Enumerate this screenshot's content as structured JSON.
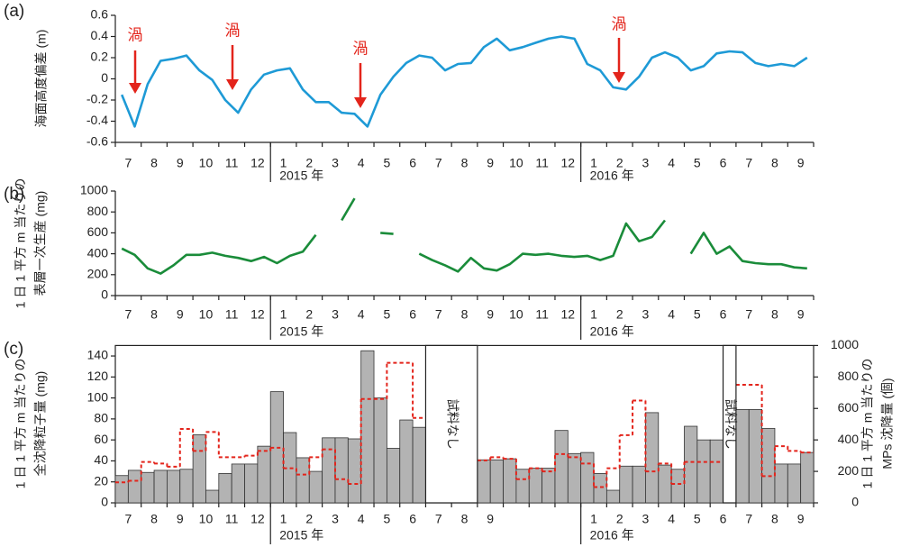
{
  "chart_data": [
    {
      "type": "line",
      "panel_label": "(a)",
      "y_label": "海面高度偏差 (m)",
      "categories": [
        "7",
        null,
        "8",
        null,
        "9",
        null,
        "10",
        null,
        "11",
        null,
        "12",
        null,
        "1",
        null,
        "2",
        null,
        "3",
        null,
        "4",
        null,
        "5",
        null,
        "6",
        null,
        "7",
        null,
        "8",
        null,
        "9",
        null,
        "10",
        null,
        "11",
        null,
        "12",
        null,
        "1",
        null,
        "2",
        null,
        "3",
        null,
        "4",
        null,
        "5",
        null,
        "6",
        null,
        "7",
        null,
        "8",
        null,
        "9",
        null
      ],
      "year_labels": [
        "2015 年",
        "2016 年"
      ],
      "annotations": [
        "渦",
        "渦",
        "渦",
        "渦"
      ],
      "annotation_color": "#e3241b",
      "series": [
        {
          "color": "#1e9ad6",
          "values": [
            -0.15,
            -0.45,
            -0.05,
            0.17,
            0.19,
            0.22,
            0.08,
            -0.01,
            -0.2,
            -0.32,
            -0.1,
            0.04,
            0.08,
            0.1,
            -0.1,
            -0.22,
            -0.22,
            -0.32,
            -0.33,
            -0.45,
            -0.15,
            0.02,
            0.15,
            0.22,
            0.2,
            0.08,
            0.14,
            0.15,
            0.3,
            0.38,
            0.27,
            0.3,
            0.34,
            0.38,
            0.4,
            0.38,
            0.14,
            0.08,
            -0.08,
            -0.1,
            0.02,
            0.2,
            0.25,
            0.2,
            0.08,
            0.12,
            0.24,
            0.26,
            0.25,
            0.15,
            0.12,
            0.14,
            0.12,
            0.2
          ]
        }
      ],
      "ylim": [
        -0.6,
        0.6
      ],
      "yticks": [
        -0.6,
        -0.4,
        -0.2,
        0,
        0.2,
        0.4,
        0.6
      ]
    },
    {
      "type": "line",
      "panel_label": "(b)",
      "y_label": [
        "1 日 1 平方 m 当たりの",
        "表層一次生産 (mg)"
      ],
      "categories": [
        "7",
        null,
        "8",
        null,
        "9",
        null,
        "10",
        null,
        "11",
        null,
        "12",
        null,
        "1",
        null,
        "2",
        null,
        "3",
        null,
        "4",
        null,
        "5",
        null,
        "6",
        null,
        "7",
        null,
        "8",
        null,
        "9",
        null,
        "10",
        null,
        "11",
        null,
        "12",
        null,
        "1",
        null,
        "2",
        null,
        "3",
        null,
        "4",
        null,
        "5",
        null,
        "6",
        null,
        "7",
        null,
        "8",
        null,
        "9",
        null
      ],
      "year_labels": [
        "2015 年",
        "2016 年"
      ],
      "series": [
        {
          "color": "#1a8c3a",
          "values": [
            450,
            390,
            260,
            210,
            290,
            390,
            390,
            410,
            380,
            360,
            330,
            370,
            310,
            380,
            420,
            580,
            null,
            720,
            930,
            null,
            600,
            590,
            null,
            400,
            340,
            290,
            230,
            360,
            260,
            240,
            300,
            400,
            390,
            400,
            380,
            370,
            380,
            340,
            380,
            690,
            520,
            560,
            720,
            null,
            400,
            600,
            400,
            470,
            330,
            310,
            300,
            300,
            270,
            260
          ]
        }
      ],
      "ylim": [
        0,
        1000
      ],
      "yticks": [
        0,
        200,
        400,
        600,
        800,
        1000
      ]
    },
    {
      "type": "bar",
      "panel_label": "(c)",
      "y_label": [
        "1 日 1 平方 m 当たりの",
        "全沈降粒子量 (mg)"
      ],
      "y2_label": [
        "1 日 1 平方 m 当たりの",
        "MPs 沈降量 (個)"
      ],
      "categories": [
        "7",
        null,
        "8",
        null,
        "9",
        null,
        "10",
        null,
        "11",
        null,
        "12",
        null,
        "1",
        null,
        "2",
        null,
        "3",
        null,
        "4",
        null,
        "5",
        null,
        "6",
        null,
        "7",
        null,
        "8",
        null,
        "9",
        null,
        null,
        null,
        null,
        null,
        null,
        null,
        "1",
        null,
        "2",
        null,
        "3",
        null,
        "4",
        null,
        "5",
        null,
        "6",
        null,
        "7",
        null,
        "8",
        null,
        "9",
        null
      ],
      "year_labels": [
        "2015 年",
        "2016 年"
      ],
      "annotations": [
        "試料なし",
        "試料なし"
      ],
      "series": [
        {
          "type": "bar",
          "color": "#b3b3b3",
          "values": [
            26,
            31,
            29,
            31,
            31,
            32,
            65,
            12,
            28,
            37,
            37,
            54,
            106,
            67,
            43,
            30,
            62,
            62,
            61,
            145,
            100,
            52,
            79,
            72,
            null,
            null,
            null,
            null,
            41,
            41,
            42,
            32,
            33,
            33,
            69,
            47,
            48,
            28,
            12,
            35,
            35,
            86,
            36,
            32,
            73,
            60,
            60,
            null,
            89,
            89,
            71,
            37,
            37,
            48
          ]
        },
        {
          "type": "step",
          "axis": "y2",
          "color": "#e3241b",
          "dashed": true,
          "values": [
            130,
            140,
            260,
            250,
            230,
            470,
            330,
            450,
            290,
            290,
            300,
            330,
            350,
            220,
            180,
            290,
            340,
            150,
            120,
            660,
            660,
            890,
            890,
            540,
            null,
            null,
            null,
            null,
            270,
            290,
            280,
            150,
            220,
            200,
            310,
            290,
            250,
            100,
            220,
            430,
            650,
            200,
            250,
            120,
            260,
            260,
            260,
            null,
            750,
            750,
            170,
            360,
            330,
            320
          ]
        }
      ],
      "ylim": [
        0,
        150
      ],
      "yticks": [
        0,
        20,
        40,
        60,
        80,
        100,
        120,
        140
      ],
      "y2lim": [
        0,
        1000
      ],
      "y2ticks": [
        0,
        200,
        400,
        600,
        800,
        1000
      ]
    }
  ]
}
